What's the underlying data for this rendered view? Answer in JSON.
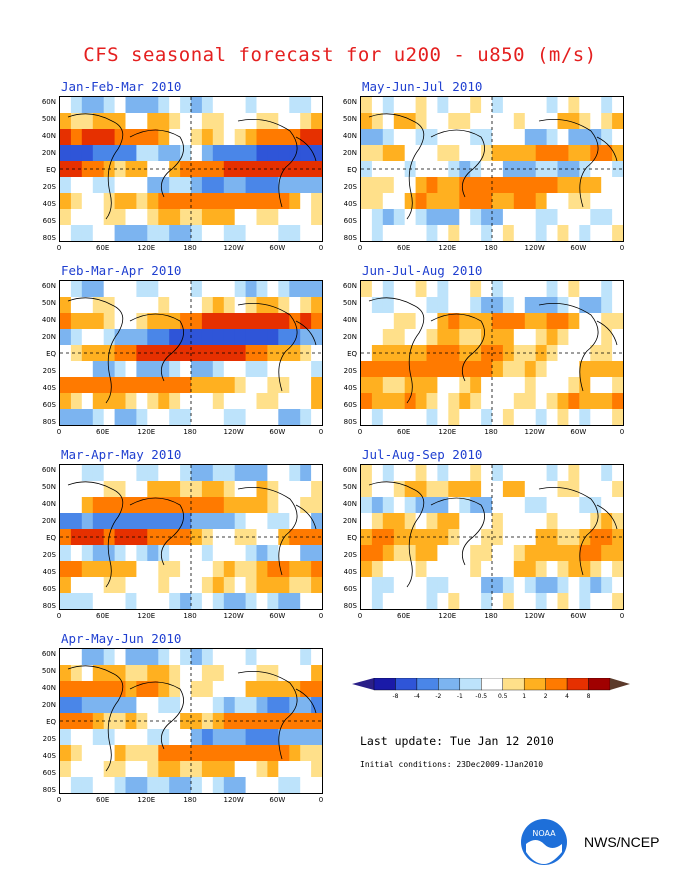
{
  "title": "CFS seasonal forecast for u200 - u850 (m/s)",
  "chart_data": [
    {
      "type": "heatmap",
      "title": "Jan-Feb-Mar 2010"
    },
    {
      "type": "heatmap",
      "title": "May-Jun-Jul 2010"
    },
    {
      "type": "heatmap",
      "title": "Feb-Mar-Apr 2010"
    },
    {
      "type": "heatmap",
      "title": "Jun-Jul-Aug 2010"
    },
    {
      "type": "heatmap",
      "title": "Mar-Apr-May 2010"
    },
    {
      "type": "heatmap",
      "title": "Jul-Aug-Sep 2010"
    },
    {
      "type": "heatmap",
      "title": "Apr-May-Jun 2010"
    }
  ],
  "lat_labels": [
    "60N",
    "50N",
    "40N",
    "20N",
    "EQ",
    "20S",
    "40S",
    "60S",
    "80S"
  ],
  "lon_labels": [
    "0",
    "60E",
    "120E",
    "180",
    "120W",
    "60W",
    "0"
  ],
  "colorbar": {
    "labels": [
      "-8",
      "-4",
      "-2",
      "-1",
      "-0.5",
      "0.5",
      "1",
      "2",
      "4",
      "8"
    ],
    "colors": [
      "#1a1aa8",
      "#2f55d8",
      "#4a86e8",
      "#7cb4f0",
      "#bde3fb",
      "#ffffff",
      "#ffe08a",
      "#ffb020",
      "#ff7a00",
      "#e63000",
      "#a00000"
    ],
    "end_low": "#2a1f88",
    "end_high": "#5b3a2a"
  },
  "last_update": "Last update: Tue Jan 12 2010",
  "initial_conditions": "Initial conditions: 23Dec2009-1Jan2010",
  "organization": "NWS/NCEP",
  "logo_text": "NOAA"
}
